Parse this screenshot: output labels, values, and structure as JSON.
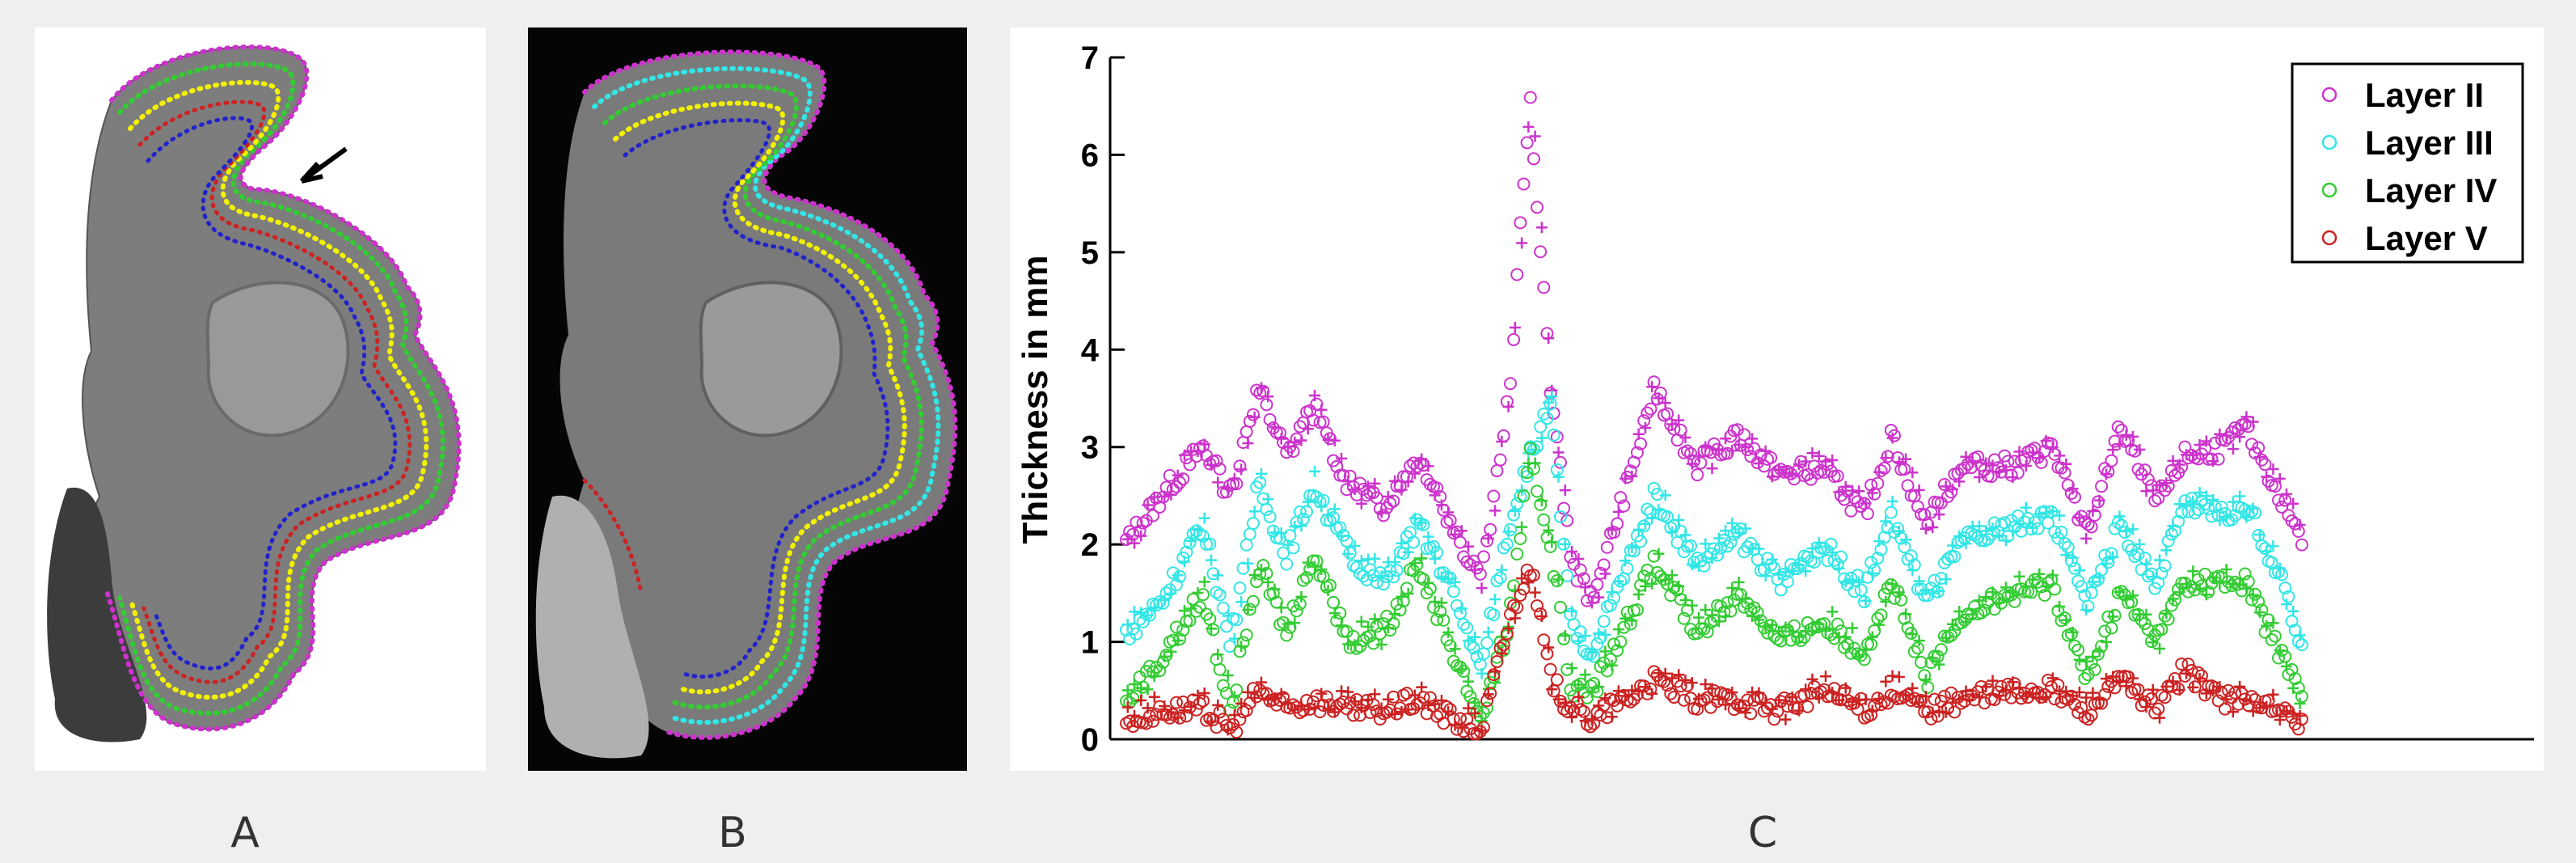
{
  "panels": {
    "a_label": "A",
    "b_label": "B",
    "c_label": "C"
  },
  "colors": {
    "background": "#f0efee",
    "layer_ii": "#cc33cc",
    "layer_iii": "#33e6e6",
    "layer_iv": "#33cc33",
    "layer_v": "#cc2222",
    "contour_yellow": "#f2f200",
    "contour_blue": "#2222cc",
    "tissue_a": "#7d7d7d",
    "tissue_b": "#7a7a7a"
  },
  "chart_data": {
    "type": "scatter",
    "title": "",
    "xlabel": "",
    "ylabel": "Thickness in mm",
    "ylim": [
      0,
      7
    ],
    "yticks": [
      0,
      1,
      2,
      3,
      4,
      5,
      6,
      7
    ],
    "x_range": [
      0,
      1000
    ],
    "grid": false,
    "legend_position": "top-right",
    "markers": [
      "circle",
      "plus"
    ],
    "series": [
      {
        "name": "Layer II",
        "color": "#cc33cc",
        "points": [
          [
            0,
            2.0
          ],
          [
            25,
            2.5
          ],
          [
            55,
            3.0
          ],
          [
            75,
            2.5
          ],
          [
            95,
            3.6
          ],
          [
            115,
            2.9
          ],
          [
            135,
            3.4
          ],
          [
            160,
            2.6
          ],
          [
            185,
            2.4
          ],
          [
            210,
            2.9
          ],
          [
            235,
            2.2
          ],
          [
            255,
            1.6
          ],
          [
            275,
            3.5
          ],
          [
            290,
            6.6
          ],
          [
            305,
            3.6
          ],
          [
            320,
            1.8
          ],
          [
            335,
            1.4
          ],
          [
            380,
            3.6
          ],
          [
            410,
            2.8
          ],
          [
            440,
            3.1
          ],
          [
            470,
            2.7
          ],
          [
            500,
            2.8
          ],
          [
            530,
            2.3
          ],
          [
            550,
            3.1
          ],
          [
            575,
            2.2
          ],
          [
            600,
            2.8
          ],
          [
            640,
            2.8
          ],
          [
            665,
            3.0
          ],
          [
            690,
            2.1
          ],
          [
            715,
            3.2
          ],
          [
            740,
            2.4
          ],
          [
            760,
            2.9
          ],
          [
            790,
            3.0
          ],
          [
            805,
            3.2
          ],
          [
            825,
            2.6
          ],
          [
            845,
            2.1
          ]
        ]
      },
      {
        "name": "Layer III",
        "color": "#33e6e6",
        "points": [
          [
            0,
            1.1
          ],
          [
            25,
            1.4
          ],
          [
            55,
            2.2
          ],
          [
            75,
            1.0
          ],
          [
            95,
            2.6
          ],
          [
            115,
            1.9
          ],
          [
            135,
            2.6
          ],
          [
            160,
            1.9
          ],
          [
            185,
            1.6
          ],
          [
            210,
            2.2
          ],
          [
            235,
            1.5
          ],
          [
            255,
            0.7
          ],
          [
            275,
            2.2
          ],
          [
            290,
            2.9
          ],
          [
            305,
            3.4
          ],
          [
            320,
            1.1
          ],
          [
            335,
            0.9
          ],
          [
            380,
            2.5
          ],
          [
            410,
            1.8
          ],
          [
            440,
            2.1
          ],
          [
            470,
            1.6
          ],
          [
            500,
            2.0
          ],
          [
            530,
            1.5
          ],
          [
            550,
            2.3
          ],
          [
            575,
            1.4
          ],
          [
            600,
            2.0
          ],
          [
            640,
            2.2
          ],
          [
            665,
            2.3
          ],
          [
            690,
            1.4
          ],
          [
            715,
            2.2
          ],
          [
            740,
            1.6
          ],
          [
            760,
            2.4
          ],
          [
            790,
            2.3
          ],
          [
            805,
            2.4
          ],
          [
            825,
            1.8
          ],
          [
            845,
            1.0
          ]
        ]
      },
      {
        "name": "Layer IV",
        "color": "#33cc33",
        "points": [
          [
            0,
            0.4
          ],
          [
            25,
            0.8
          ],
          [
            55,
            1.5
          ],
          [
            75,
            0.3
          ],
          [
            95,
            1.8
          ],
          [
            115,
            1.1
          ],
          [
            135,
            1.9
          ],
          [
            160,
            1.0
          ],
          [
            185,
            1.1
          ],
          [
            210,
            1.8
          ],
          [
            235,
            0.9
          ],
          [
            255,
            0.2
          ],
          [
            275,
            1.2
          ],
          [
            290,
            2.9
          ],
          [
            305,
            2.0
          ],
          [
            320,
            0.5
          ],
          [
            335,
            0.5
          ],
          [
            380,
            1.8
          ],
          [
            410,
            1.1
          ],
          [
            440,
            1.5
          ],
          [
            470,
            1.0
          ],
          [
            500,
            1.2
          ],
          [
            530,
            0.9
          ],
          [
            550,
            1.6
          ],
          [
            575,
            0.6
          ],
          [
            600,
            1.3
          ],
          [
            640,
            1.5
          ],
          [
            665,
            1.6
          ],
          [
            690,
            0.6
          ],
          [
            715,
            1.5
          ],
          [
            740,
            1.0
          ],
          [
            760,
            1.6
          ],
          [
            790,
            1.6
          ],
          [
            805,
            1.6
          ],
          [
            825,
            1.0
          ],
          [
            845,
            0.4
          ]
        ]
      },
      {
        "name": "Layer V",
        "color": "#cc2222",
        "points": [
          [
            0,
            0.2
          ],
          [
            25,
            0.3
          ],
          [
            55,
            0.3
          ],
          [
            75,
            0.1
          ],
          [
            95,
            0.5
          ],
          [
            115,
            0.3
          ],
          [
            135,
            0.4
          ],
          [
            160,
            0.3
          ],
          [
            185,
            0.3
          ],
          [
            210,
            0.4
          ],
          [
            235,
            0.2
          ],
          [
            255,
            0.1
          ],
          [
            275,
            1.2
          ],
          [
            290,
            1.8
          ],
          [
            305,
            0.6
          ],
          [
            320,
            0.3
          ],
          [
            335,
            0.2
          ],
          [
            380,
            0.6
          ],
          [
            410,
            0.4
          ],
          [
            440,
            0.4
          ],
          [
            470,
            0.3
          ],
          [
            500,
            0.5
          ],
          [
            530,
            0.3
          ],
          [
            550,
            0.5
          ],
          [
            575,
            0.3
          ],
          [
            600,
            0.4
          ],
          [
            640,
            0.5
          ],
          [
            665,
            0.5
          ],
          [
            690,
            0.3
          ],
          [
            715,
            0.6
          ],
          [
            740,
            0.3
          ],
          [
            760,
            0.7
          ],
          [
            790,
            0.4
          ],
          [
            805,
            0.4
          ],
          [
            825,
            0.3
          ],
          [
            845,
            0.1
          ]
        ]
      }
    ]
  }
}
